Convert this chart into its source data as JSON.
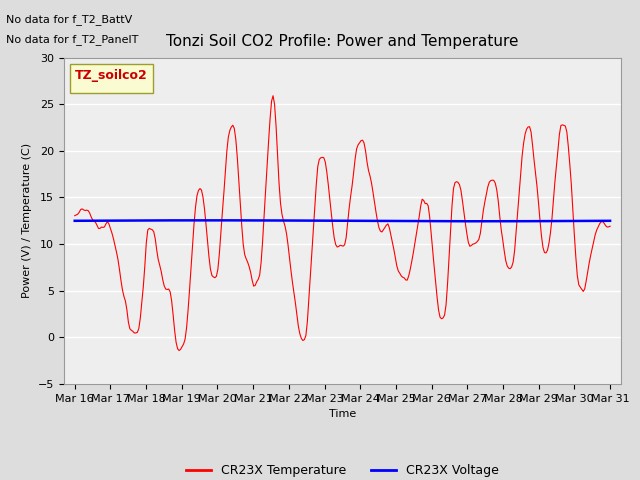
{
  "title": "Tonzi Soil CO2 Profile: Power and Temperature",
  "subtitle_lines": [
    "No data for f_T2_BattV",
    "No data for f_T2_PanelT"
  ],
  "xlabel": "Time",
  "ylabel": "Power (V) / Temperature (C)",
  "ylim": [
    -5,
    30
  ],
  "yticks": [
    -5,
    0,
    5,
    10,
    15,
    20,
    25,
    30
  ],
  "legend_box_label": "TZ_soilco2",
  "legend_entries": [
    "CR23X Temperature",
    "CR23X Voltage"
  ],
  "temp_color": "#ff0000",
  "voltage_color": "#0000ff",
  "background_color": "#dddddd",
  "plot_bg_color": "#eeeeee",
  "grid_color": "#ffffff",
  "voltage_value": 12.5,
  "x_tick_labels": [
    "Mar 16",
    "Mar 17",
    "Mar 18",
    "Mar 19",
    "Mar 20",
    "Mar 21",
    "Mar 22",
    "Mar 23",
    "Mar 24",
    "Mar 25",
    "Mar 26",
    "Mar 27",
    "Mar 28",
    "Mar 29",
    "Mar 30",
    "Mar 31"
  ],
  "title_fontsize": 11,
  "label_fontsize": 8,
  "tick_fontsize": 8,
  "subtitle_fontsize": 8
}
